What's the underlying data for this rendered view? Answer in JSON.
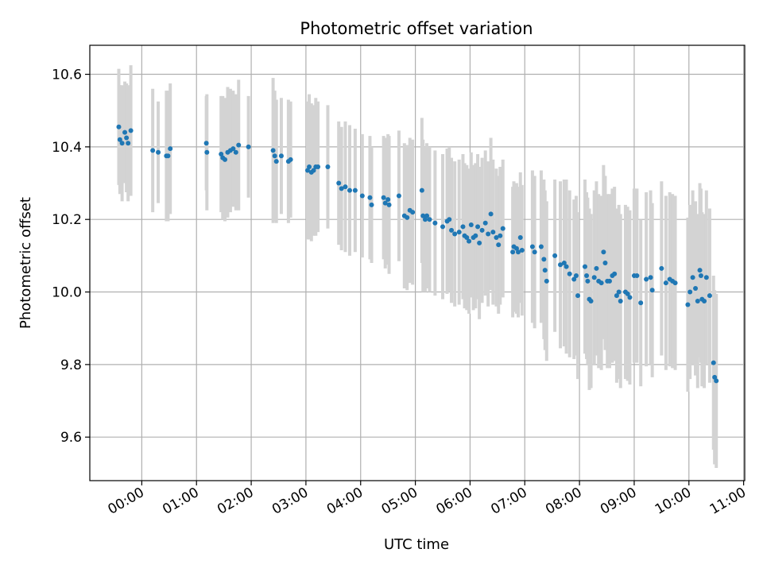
{
  "chart_data": {
    "type": "scatter",
    "title": "Photometric offset variation",
    "xlabel": "UTC time",
    "ylabel": "Photometric offset",
    "x_tick_labels": [
      "00:00",
      "01:00",
      "02:00",
      "03:00",
      "04:00",
      "05:00",
      "06:00",
      "07:00",
      "08:00",
      "09:00",
      "10:00",
      "11:00"
    ],
    "y_tick_labels": [
      "9.6",
      "9.8",
      "10.0",
      "10.2",
      "10.4",
      "10.6"
    ],
    "y_ticks": [
      9.6,
      9.8,
      10.0,
      10.2,
      10.4,
      10.6
    ],
    "xlim_hours": [
      -0.95,
      11.02
    ],
    "ylim": [
      9.48,
      10.68
    ],
    "grid": true,
    "colors": {
      "point": "#1f77b4",
      "errorbar": "#d3d3d3",
      "grid": "#b0b0b0"
    },
    "points": [
      {
        "t": -0.42,
        "y": 10.455,
        "e": 0.16
      },
      {
        "t": -0.4,
        "y": 10.42,
        "e": 0.15
      },
      {
        "t": -0.36,
        "y": 10.41,
        "e": 0.16
      },
      {
        "t": -0.31,
        "y": 10.44,
        "e": 0.14
      },
      {
        "t": -0.28,
        "y": 10.425,
        "e": 0.15
      },
      {
        "t": -0.25,
        "y": 10.41,
        "e": 0.16
      },
      {
        "t": -0.2,
        "y": 10.445,
        "e": 0.18
      },
      {
        "t": 0.2,
        "y": 10.39,
        "e": 0.17
      },
      {
        "t": 0.3,
        "y": 10.385,
        "e": 0.14
      },
      {
        "t": 0.45,
        "y": 10.375,
        "e": 0.18
      },
      {
        "t": 0.48,
        "y": 10.375,
        "e": 0.18
      },
      {
        "t": 0.52,
        "y": 10.395,
        "e": 0.18
      },
      {
        "t": 1.18,
        "y": 10.41,
        "e": 0.13
      },
      {
        "t": 1.19,
        "y": 10.385,
        "e": 0.16
      },
      {
        "t": 1.45,
        "y": 10.38,
        "e": 0.16
      },
      {
        "t": 1.48,
        "y": 10.37,
        "e": 0.17
      },
      {
        "t": 1.52,
        "y": 10.365,
        "e": 0.17
      },
      {
        "t": 1.57,
        "y": 10.385,
        "e": 0.18
      },
      {
        "t": 1.62,
        "y": 10.39,
        "e": 0.17
      },
      {
        "t": 1.67,
        "y": 10.395,
        "e": 0.16
      },
      {
        "t": 1.72,
        "y": 10.385,
        "e": 0.16
      },
      {
        "t": 1.77,
        "y": 10.405,
        "e": 0.18
      },
      {
        "t": 1.95,
        "y": 10.4,
        "e": 0.14
      },
      {
        "t": 2.4,
        "y": 10.39,
        "e": 0.2
      },
      {
        "t": 2.43,
        "y": 10.375,
        "e": 0.18
      },
      {
        "t": 2.46,
        "y": 10.36,
        "e": 0.17
      },
      {
        "t": 2.55,
        "y": 10.375,
        "e": 0.16
      },
      {
        "t": 2.68,
        "y": 10.36,
        "e": 0.17
      },
      {
        "t": 2.72,
        "y": 10.365,
        "e": 0.16
      },
      {
        "t": 3.03,
        "y": 10.335,
        "e": 0.19
      },
      {
        "t": 3.06,
        "y": 10.345,
        "e": 0.2
      },
      {
        "t": 3.1,
        "y": 10.33,
        "e": 0.19
      },
      {
        "t": 3.14,
        "y": 10.335,
        "e": 0.18
      },
      {
        "t": 3.18,
        "y": 10.345,
        "e": 0.19
      },
      {
        "t": 3.22,
        "y": 10.345,
        "e": 0.18
      },
      {
        "t": 3.4,
        "y": 10.345,
        "e": 0.17
      },
      {
        "t": 3.6,
        "y": 10.3,
        "e": 0.17
      },
      {
        "t": 3.65,
        "y": 10.285,
        "e": 0.17
      },
      {
        "t": 3.72,
        "y": 10.29,
        "e": 0.18
      },
      {
        "t": 3.8,
        "y": 10.28,
        "e": 0.18
      },
      {
        "t": 3.9,
        "y": 10.28,
        "e": 0.17
      },
      {
        "t": 4.03,
        "y": 10.265,
        "e": 0.17
      },
      {
        "t": 4.17,
        "y": 10.26,
        "e": 0.17
      },
      {
        "t": 4.2,
        "y": 10.24,
        "e": 0.16
      },
      {
        "t": 4.42,
        "y": 10.26,
        "e": 0.17
      },
      {
        "t": 4.45,
        "y": 10.245,
        "e": 0.18
      },
      {
        "t": 4.5,
        "y": 10.255,
        "e": 0.18
      },
      {
        "t": 4.52,
        "y": 10.24,
        "e": 0.19
      },
      {
        "t": 4.7,
        "y": 10.265,
        "e": 0.18
      },
      {
        "t": 4.8,
        "y": 10.21,
        "e": 0.2
      },
      {
        "t": 4.85,
        "y": 10.205,
        "e": 0.2
      },
      {
        "t": 4.9,
        "y": 10.225,
        "e": 0.2
      },
      {
        "t": 4.95,
        "y": 10.22,
        "e": 0.2
      },
      {
        "t": 5.12,
        "y": 10.28,
        "e": 0.2
      },
      {
        "t": 5.14,
        "y": 10.21,
        "e": 0.21
      },
      {
        "t": 5.18,
        "y": 10.2,
        "e": 0.2
      },
      {
        "t": 5.21,
        "y": 10.21,
        "e": 0.2
      },
      {
        "t": 5.26,
        "y": 10.2,
        "e": 0.2
      },
      {
        "t": 5.36,
        "y": 10.19,
        "e": 0.2
      },
      {
        "t": 5.5,
        "y": 10.18,
        "e": 0.2
      },
      {
        "t": 5.58,
        "y": 10.195,
        "e": 0.2
      },
      {
        "t": 5.62,
        "y": 10.2,
        "e": 0.2
      },
      {
        "t": 5.66,
        "y": 10.17,
        "e": 0.2
      },
      {
        "t": 5.72,
        "y": 10.16,
        "e": 0.2
      },
      {
        "t": 5.8,
        "y": 10.165,
        "e": 0.2
      },
      {
        "t": 5.87,
        "y": 10.18,
        "e": 0.2
      },
      {
        "t": 5.9,
        "y": 10.155,
        "e": 0.2
      },
      {
        "t": 5.94,
        "y": 10.15,
        "e": 0.2
      },
      {
        "t": 5.98,
        "y": 10.14,
        "e": 0.2
      },
      {
        "t": 6.02,
        "y": 10.185,
        "e": 0.2
      },
      {
        "t": 6.06,
        "y": 10.15,
        "e": 0.2
      },
      {
        "t": 6.1,
        "y": 10.155,
        "e": 0.2
      },
      {
        "t": 6.14,
        "y": 10.18,
        "e": 0.2
      },
      {
        "t": 6.17,
        "y": 10.135,
        "e": 0.21
      },
      {
        "t": 6.22,
        "y": 10.17,
        "e": 0.2
      },
      {
        "t": 6.28,
        "y": 10.19,
        "e": 0.2
      },
      {
        "t": 6.33,
        "y": 10.16,
        "e": 0.2
      },
      {
        "t": 6.38,
        "y": 10.215,
        "e": 0.21
      },
      {
        "t": 6.42,
        "y": 10.165,
        "e": 0.2
      },
      {
        "t": 6.48,
        "y": 10.15,
        "e": 0.19
      },
      {
        "t": 6.52,
        "y": 10.13,
        "e": 0.19
      },
      {
        "t": 6.55,
        "y": 10.155,
        "e": 0.19
      },
      {
        "t": 6.6,
        "y": 10.175,
        "e": 0.19
      },
      {
        "t": 6.78,
        "y": 10.11,
        "e": 0.18
      },
      {
        "t": 6.8,
        "y": 10.125,
        "e": 0.18
      },
      {
        "t": 6.85,
        "y": 10.12,
        "e": 0.18
      },
      {
        "t": 6.88,
        "y": 10.11,
        "e": 0.18
      },
      {
        "t": 6.92,
        "y": 10.15,
        "e": 0.18
      },
      {
        "t": 6.95,
        "y": 10.115,
        "e": 0.18
      },
      {
        "t": 7.14,
        "y": 10.125,
        "e": 0.21
      },
      {
        "t": 7.18,
        "y": 10.11,
        "e": 0.21
      },
      {
        "t": 7.3,
        "y": 10.125,
        "e": 0.21
      },
      {
        "t": 7.35,
        "y": 10.09,
        "e": 0.22
      },
      {
        "t": 7.37,
        "y": 10.06,
        "e": 0.22
      },
      {
        "t": 7.4,
        "y": 10.03,
        "e": 0.22
      },
      {
        "t": 7.55,
        "y": 10.1,
        "e": 0.21
      },
      {
        "t": 7.65,
        "y": 10.075,
        "e": 0.23
      },
      {
        "t": 7.72,
        "y": 10.08,
        "e": 0.23
      },
      {
        "t": 7.76,
        "y": 10.07,
        "e": 0.24
      },
      {
        "t": 7.82,
        "y": 10.05,
        "e": 0.23
      },
      {
        "t": 7.9,
        "y": 10.035,
        "e": 0.22
      },
      {
        "t": 7.94,
        "y": 10.045,
        "e": 0.22
      },
      {
        "t": 7.97,
        "y": 9.99,
        "e": 0.23
      },
      {
        "t": 8.1,
        "y": 10.07,
        "e": 0.24
      },
      {
        "t": 8.13,
        "y": 10.045,
        "e": 0.23
      },
      {
        "t": 8.15,
        "y": 10.03,
        "e": 0.23
      },
      {
        "t": 8.18,
        "y": 9.98,
        "e": 0.25
      },
      {
        "t": 8.21,
        "y": 9.975,
        "e": 0.24
      },
      {
        "t": 8.27,
        "y": 10.04,
        "e": 0.24
      },
      {
        "t": 8.31,
        "y": 10.065,
        "e": 0.24
      },
      {
        "t": 8.35,
        "y": 10.03,
        "e": 0.24
      },
      {
        "t": 8.4,
        "y": 10.025,
        "e": 0.24
      },
      {
        "t": 8.44,
        "y": 10.11,
        "e": 0.24
      },
      {
        "t": 8.47,
        "y": 10.08,
        "e": 0.24
      },
      {
        "t": 8.51,
        "y": 10.03,
        "e": 0.24
      },
      {
        "t": 8.55,
        "y": 10.03,
        "e": 0.24
      },
      {
        "t": 8.6,
        "y": 10.045,
        "e": 0.24
      },
      {
        "t": 8.64,
        "y": 10.05,
        "e": 0.24
      },
      {
        "t": 8.68,
        "y": 9.99,
        "e": 0.24
      },
      {
        "t": 8.72,
        "y": 10.0,
        "e": 0.24
      },
      {
        "t": 8.75,
        "y": 9.975,
        "e": 0.24
      },
      {
        "t": 8.84,
        "y": 10.0,
        "e": 0.24
      },
      {
        "t": 8.88,
        "y": 9.995,
        "e": 0.24
      },
      {
        "t": 8.92,
        "y": 9.985,
        "e": 0.24
      },
      {
        "t": 9.0,
        "y": 10.045,
        "e": 0.24
      },
      {
        "t": 9.05,
        "y": 10.045,
        "e": 0.24
      },
      {
        "t": 9.12,
        "y": 9.97,
        "e": 0.23
      },
      {
        "t": 9.22,
        "y": 10.035,
        "e": 0.24
      },
      {
        "t": 9.3,
        "y": 10.04,
        "e": 0.24
      },
      {
        "t": 9.33,
        "y": 10.005,
        "e": 0.24
      },
      {
        "t": 9.5,
        "y": 10.065,
        "e": 0.24
      },
      {
        "t": 9.58,
        "y": 10.025,
        "e": 0.24
      },
      {
        "t": 9.65,
        "y": 10.035,
        "e": 0.24
      },
      {
        "t": 9.7,
        "y": 10.03,
        "e": 0.24
      },
      {
        "t": 9.75,
        "y": 10.025,
        "e": 0.24
      },
      {
        "t": 9.98,
        "y": 9.965,
        "e": 0.24
      },
      {
        "t": 10.02,
        "y": 10.0,
        "e": 0.24
      },
      {
        "t": 10.07,
        "y": 10.04,
        "e": 0.24
      },
      {
        "t": 10.12,
        "y": 10.01,
        "e": 0.24
      },
      {
        "t": 10.16,
        "y": 9.975,
        "e": 0.24
      },
      {
        "t": 10.2,
        "y": 10.06,
        "e": 0.24
      },
      {
        "t": 10.22,
        "y": 10.045,
        "e": 0.24
      },
      {
        "t": 10.24,
        "y": 9.98,
        "e": 0.24
      },
      {
        "t": 10.28,
        "y": 9.975,
        "e": 0.24
      },
      {
        "t": 10.32,
        "y": 10.04,
        "e": 0.24
      },
      {
        "t": 10.38,
        "y": 9.99,
        "e": 0.24
      },
      {
        "t": 10.45,
        "y": 9.805,
        "e": 0.24
      },
      {
        "t": 10.47,
        "y": 9.765,
        "e": 0.24
      },
      {
        "t": 10.5,
        "y": 9.755,
        "e": 0.24
      }
    ]
  }
}
